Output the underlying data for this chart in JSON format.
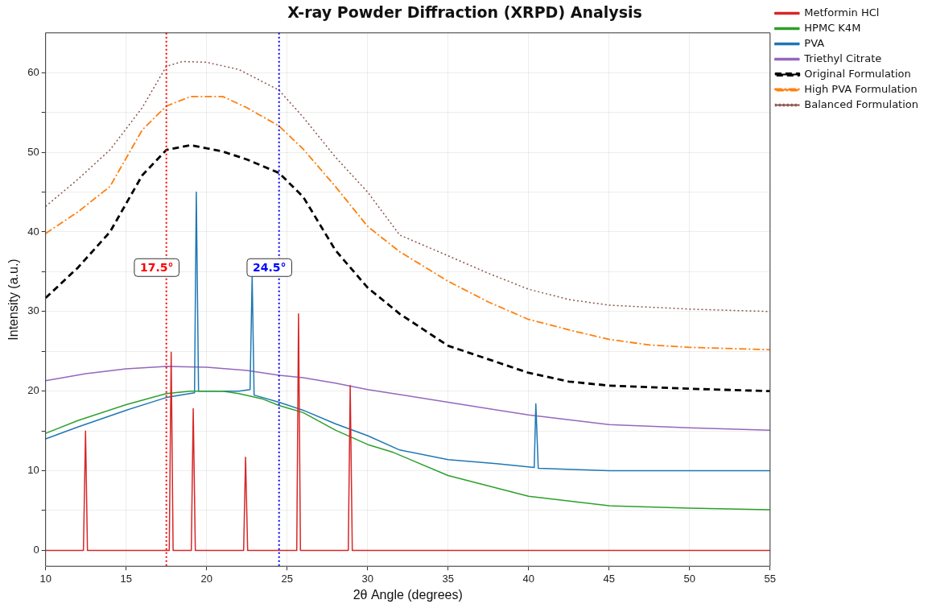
{
  "chart_data": {
    "type": "line",
    "title": "X-ray Powder Diffraction (XRPD) Analysis",
    "xlabel": "2θ Angle (degrees)",
    "ylabel": "Intensity (a.u.)",
    "xlim": [
      10,
      55
    ],
    "xticks": [
      10,
      15,
      20,
      25,
      30,
      35,
      40,
      45,
      50,
      55
    ],
    "ylim": [
      -2,
      65
    ],
    "yticks": [
      0,
      {
        "value": 5,
        "label": null
      },
      10,
      {
        "value": 15,
        "label": null
      },
      20,
      {
        "value": 25,
        "label": null
      },
      30,
      {
        "value": 35,
        "label": null
      },
      40,
      {
        "value": 45,
        "label": null
      },
      50,
      {
        "value": 55,
        "label": null
      },
      60
    ],
    "grid": true,
    "legend": "top right",
    "marker": "none",
    "ref_lines": [
      {
        "axis": "x",
        "value": 17.5,
        "label": "17.5°",
        "color": "#ff0000",
        "line_style": "dotted"
      },
      {
        "axis": "x",
        "value": 24.5,
        "label": "24.5°",
        "color": "#0000ff",
        "line_style": "dotted"
      }
    ],
    "series": [
      {
        "name": "Metformin HCl",
        "color": "#d62728",
        "line_style": "solid",
        "x": [
          10,
          12.35,
          12.48,
          12.6,
          17.68,
          17.8,
          17.92,
          19.05,
          19.17,
          19.3,
          22.3,
          22.42,
          22.55,
          25.6,
          25.71,
          25.83,
          28.8,
          28.92,
          29.05,
          55
        ],
        "values": [
          0,
          0,
          15,
          0,
          0,
          24.9,
          0,
          0,
          17.8,
          0,
          0,
          11.7,
          0,
          0,
          29.7,
          0,
          0,
          20.7,
          0,
          0
        ]
      },
      {
        "name": "HPMC K4M",
        "color": "#2ca02c",
        "line_style": "solid",
        "x": [
          10,
          12,
          15,
          17.5,
          19,
          20,
          21,
          22,
          23.5,
          24.5,
          26,
          28,
          30,
          31.6,
          35,
          40,
          45,
          50,
          55
        ],
        "values": [
          14.7,
          16.3,
          18.3,
          19.7,
          20,
          20,
          20,
          19.7,
          19,
          18.2,
          17.3,
          15.1,
          13.3,
          12.3,
          9.4,
          6.8,
          5.6,
          5.3,
          5.1
        ]
      },
      {
        "name": "PVA",
        "color": "#1f77b4",
        "line_style": "solid",
        "x": [
          10,
          12,
          15,
          17.5,
          19.25,
          19.36,
          19.5,
          20,
          22,
          22.7,
          22.83,
          22.95,
          24.5,
          26,
          28,
          30,
          32,
          35,
          38,
          40.35,
          40.45,
          40.6,
          45,
          50,
          55
        ],
        "values": [
          14,
          15.5,
          17.6,
          19.2,
          19.8,
          45,
          20,
          20,
          20,
          20.2,
          34.5,
          19.5,
          18.6,
          17.6,
          15.9,
          14.4,
          12.6,
          11.4,
          10.9,
          10.4,
          18.4,
          10.3,
          10,
          10,
          10
        ]
      },
      {
        "name": "Triethyl Citrate",
        "color": "#9467bd",
        "line_style": "solid",
        "x": [
          10,
          12.5,
          15,
          17.5,
          20,
          22.5,
          24.5,
          26,
          28,
          30,
          31.6,
          35,
          40,
          42.5,
          45,
          50,
          55
        ],
        "values": [
          21.3,
          22.2,
          22.8,
          23.1,
          23,
          22.6,
          22,
          21.7,
          21,
          20.2,
          19.7,
          18.6,
          17,
          16.4,
          15.8,
          15.4,
          15.1
        ]
      },
      {
        "name": "Original Formulation",
        "color": "#000000",
        "line_style": "dashed",
        "x": [
          10,
          12,
          14,
          16,
          17.5,
          19,
          21,
          22.5,
          24.5,
          26,
          28,
          30,
          32,
          35,
          37.5,
          40,
          42.5,
          45,
          50,
          55
        ],
        "values": [
          31.7,
          35.5,
          40,
          47.1,
          50.3,
          50.9,
          50.1,
          49.1,
          47.4,
          44.4,
          37.7,
          33,
          29.7,
          25.7,
          24,
          22.3,
          21.2,
          20.7,
          20.3,
          20
        ]
      },
      {
        "name": "High PVA Formulation",
        "color": "#ff7f0e",
        "line_style": "dashdot",
        "x": [
          10,
          12,
          14,
          16,
          17.5,
          19,
          21,
          22.5,
          24.5,
          26,
          28,
          30,
          32,
          35,
          37.5,
          40,
          42.5,
          45,
          47.5,
          50,
          55
        ],
        "values": [
          39.8,
          42.5,
          45.7,
          52.8,
          55.8,
          57,
          57,
          55.6,
          53.3,
          50.4,
          45.7,
          40.7,
          37.5,
          33.8,
          31.2,
          29,
          27.7,
          26.5,
          25.8,
          25.5,
          25.2
        ]
      },
      {
        "name": "Balanced Formulation",
        "color": "#8c564b",
        "line_style": "dotted",
        "x": [
          10,
          12,
          14,
          16,
          17.5,
          18.5,
          20,
          22,
          24.5,
          26,
          28,
          30,
          32,
          35,
          37.5,
          40,
          42.5,
          45,
          50,
          55
        ],
        "values": [
          43.2,
          46.6,
          50.3,
          55.6,
          60.8,
          61.4,
          61.3,
          60.4,
          57.8,
          54.4,
          49.4,
          45,
          39.6,
          37,
          34.8,
          32.8,
          31.5,
          30.8,
          30.3,
          30
        ]
      }
    ]
  }
}
